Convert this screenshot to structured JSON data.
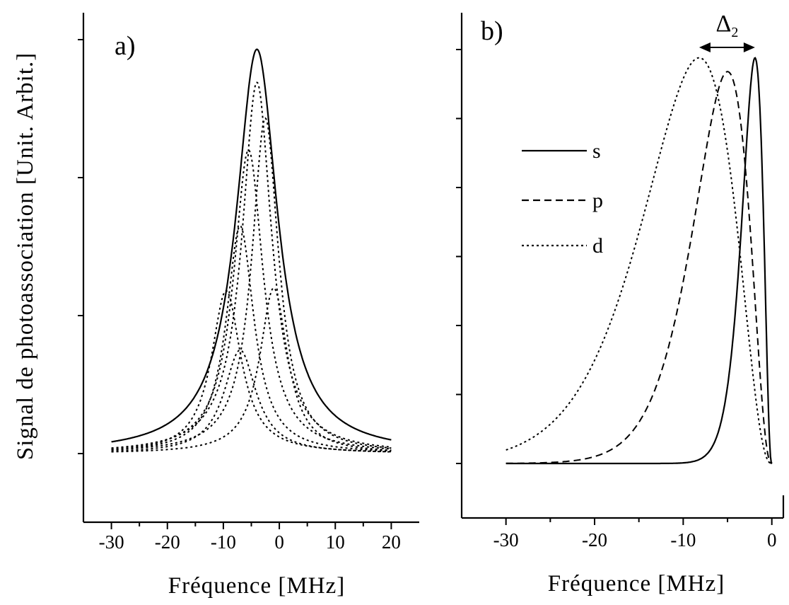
{
  "colors": {
    "ink": "#000000",
    "background": "#ffffff"
  },
  "figure": {
    "ylabel": "Signal de photoassociation [Unit. Arbit.]"
  },
  "chart_data": [
    {
      "type": "line",
      "panel_label": "a)",
      "xlabel": "Fréquence [MHz]",
      "ylabel": "Signal de photoassociation [Unit. Arbit.]",
      "xlim": [
        -35,
        25
      ],
      "ylim": [
        -0.35,
        3.2
      ],
      "x_ticks": [
        -30,
        -20,
        -10,
        0,
        10,
        20
      ],
      "x_tick_labels": [
        "-30",
        "-20",
        "-10",
        "0",
        "10",
        "20"
      ],
      "y_ticks": [
        0,
        1,
        2,
        3
      ],
      "y_tick_labels": [
        "",
        "",
        "",
        ""
      ],
      "grid": false,
      "series": [
        {
          "style": "solid",
          "shape": "lorentzian",
          "center": -4,
          "hwhm": 4.5,
          "peak": 2.93,
          "x_range": [
            -30,
            20
          ]
        },
        {
          "style": "dotted",
          "shape": "lorentzian",
          "center": -4,
          "hwhm": 3.2,
          "peak": 2.69,
          "x_range": [
            -30,
            20
          ]
        },
        {
          "style": "dotted",
          "shape": "lorentzian",
          "center": -2.5,
          "hwhm": 2.9,
          "peak": 2.43,
          "x_range": [
            -30,
            20
          ]
        },
        {
          "style": "dotted",
          "shape": "lorentzian",
          "center": -5.5,
          "hwhm": 3.2,
          "peak": 2.2,
          "x_range": [
            -30,
            20
          ]
        },
        {
          "style": "dotted",
          "shape": "lorentzian",
          "center": -7,
          "hwhm": 3.0,
          "peak": 1.65,
          "x_range": [
            -30,
            20
          ]
        },
        {
          "style": "dotted",
          "shape": "lorentzian",
          "center": -9.5,
          "hwhm": 3.2,
          "peak": 1.18,
          "x_range": [
            -30,
            20
          ]
        },
        {
          "style": "dotted",
          "shape": "lorentzian",
          "center": -1,
          "hwhm": 3.0,
          "peak": 1.2,
          "x_range": [
            -30,
            20
          ]
        },
        {
          "style": "dotted",
          "shape": "lorentzian",
          "center": -7,
          "hwhm": 3.5,
          "peak": 0.75,
          "x_range": [
            -30,
            20
          ]
        }
      ]
    },
    {
      "type": "line",
      "panel_label": "b)",
      "xlabel": "Fréquence [MHz]",
      "xlim": [
        -35,
        1.3
      ],
      "ylim": [
        -0.55,
        3.2
      ],
      "x_ticks": [
        -30,
        -20,
        -10,
        0
      ],
      "x_tick_labels": [
        "-30",
        "-20",
        "-10",
        "0"
      ],
      "y_ticks": [
        0,
        0.5,
        1,
        1.5,
        2,
        2.5,
        3,
        3.5
      ],
      "y_tick_labels": [
        "",
        "",
        "",
        "",
        "",
        "",
        "",
        ""
      ],
      "grid": false,
      "legend_position": "upper-center",
      "annotation": {
        "symbol": "Δ",
        "subscript": "2",
        "from_x": -8.2,
        "to_x": -1.9
      },
      "series": [
        {
          "name": "s",
          "style": "solid",
          "shape": "lineshape",
          "peak_x": -1.9,
          "peak": 2.94,
          "x_range": [
            -30,
            0
          ]
        },
        {
          "name": "p",
          "style": "dashed",
          "shape": "lineshape",
          "peak_x": -5,
          "peak": 2.84,
          "x_range": [
            -30,
            0
          ]
        },
        {
          "name": "d",
          "style": "dotted",
          "shape": "lineshape",
          "peak_x": -8.2,
          "peak": 2.94,
          "x_range": [
            -30,
            0
          ]
        }
      ]
    }
  ]
}
